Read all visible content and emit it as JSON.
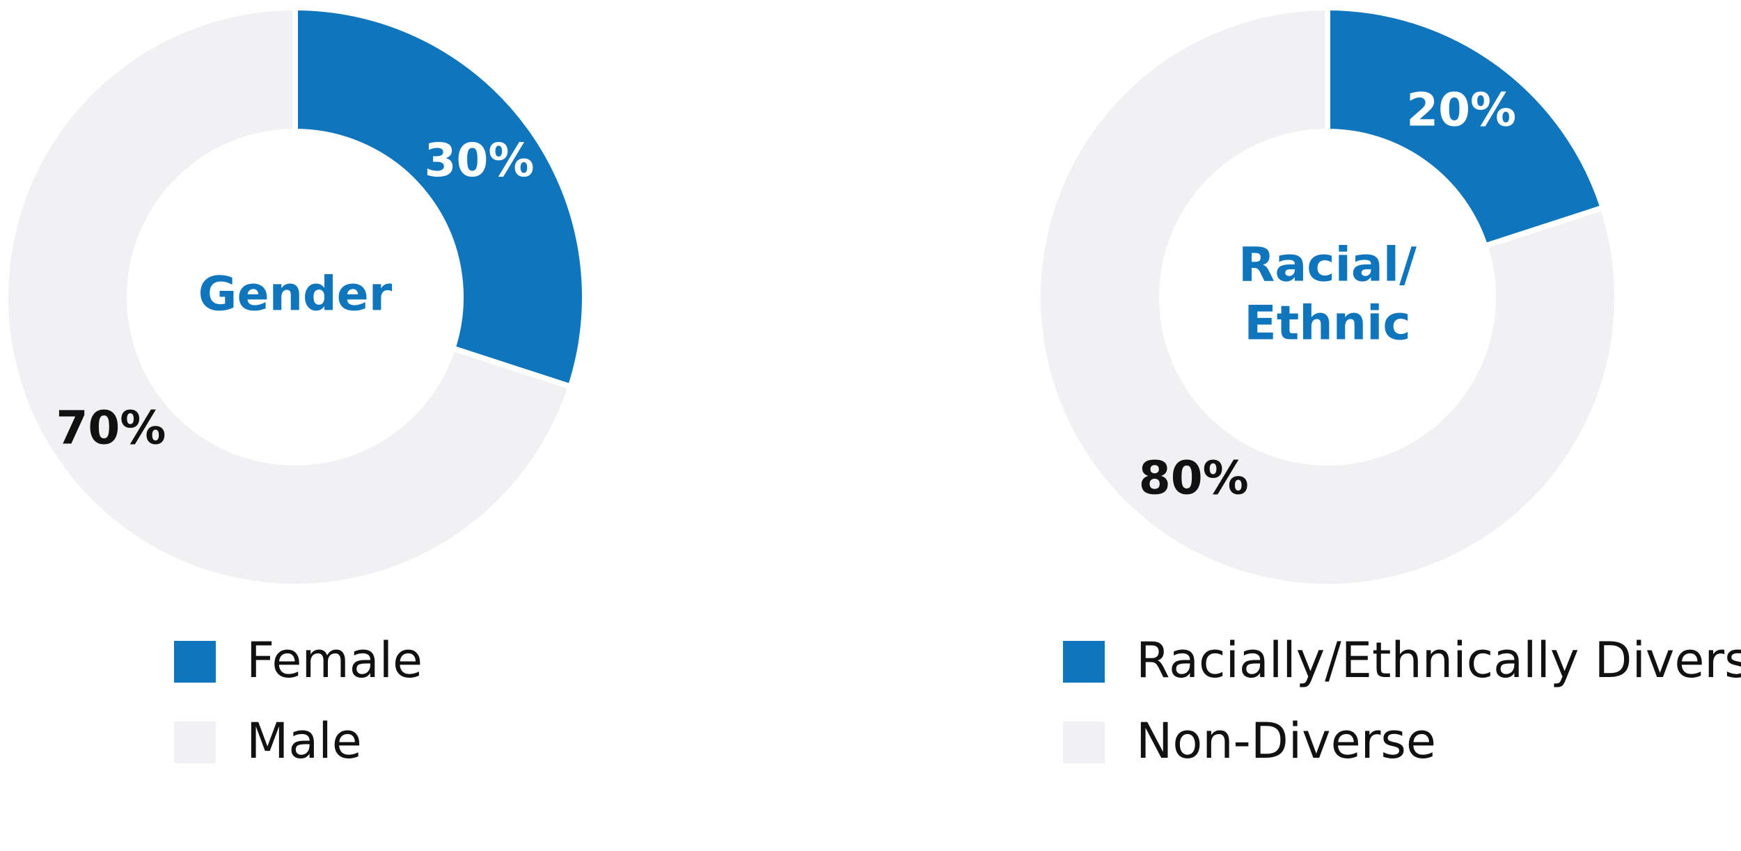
{
  "chart_data": [
    {
      "type": "donut",
      "title": [
        "Gender"
      ],
      "categories": [
        "Female",
        "Male"
      ],
      "values": [
        30,
        70
      ],
      "value_labels": [
        "30%",
        "70%"
      ],
      "colors": [
        "#0f75bc",
        "#f1f1f3"
      ],
      "label_colors": [
        "#ffffff",
        "#111111"
      ]
    },
    {
      "type": "donut",
      "title": [
        "Racial/",
        "Ethnic"
      ],
      "categories": [
        "Racially/Ethnically Diverse",
        "Non-Diverse"
      ],
      "values": [
        20,
        80
      ],
      "value_labels": [
        "20%",
        "80%"
      ],
      "colors": [
        "#0f75bc",
        "#f1f1f3"
      ],
      "label_colors": [
        "#ffffff",
        "#111111"
      ]
    }
  ]
}
